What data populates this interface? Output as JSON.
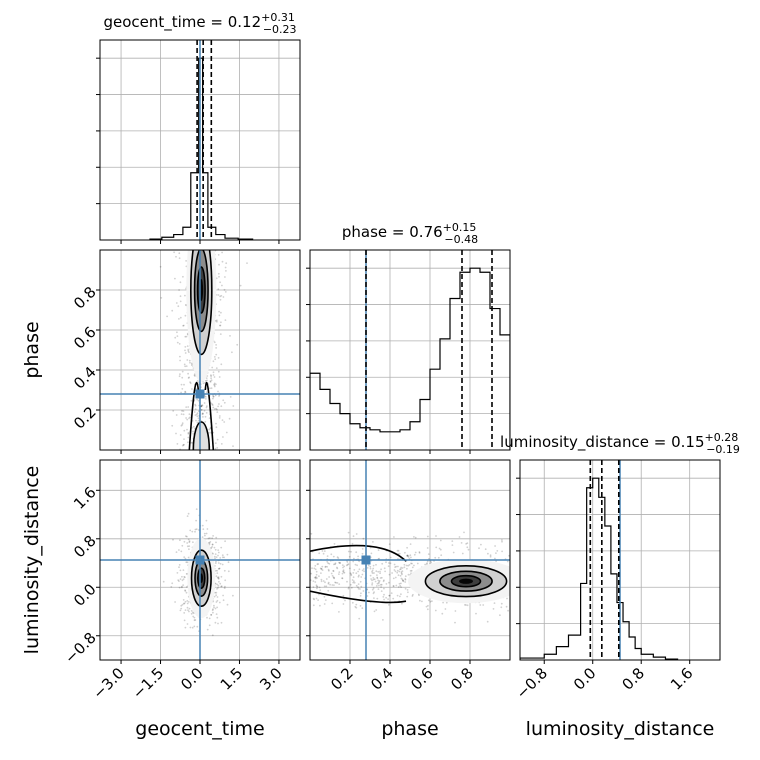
{
  "chart_data": {
    "type": "corner",
    "parameters": [
      "geocent_time",
      "phase",
      "luminosity_distance"
    ],
    "truths": {
      "geocent_time": 0.0,
      "phase": 0.28,
      "luminosity_distance": 0.45
    },
    "truth_color": "#4682b4",
    "titles": [
      {
        "param": "geocent_time",
        "text": "geocent_time = 0.12",
        "plus": "+0.31",
        "minus": "−0.23"
      },
      {
        "param": "phase",
        "text": "phase = 0.76",
        "plus": "+0.15",
        "minus": "−0.48"
      },
      {
        "param": "luminosity_distance",
        "text": "luminosity_distance = 0.15",
        "plus": "+0.28",
        "minus": "−0.19"
      }
    ],
    "axes": {
      "geocent_time": {
        "range": [
          -3.8,
          3.8
        ],
        "ticks": [
          -3.0,
          -1.5,
          0.0,
          1.5,
          3.0
        ],
        "tick_labels": [
          "−3.0",
          "−1.5",
          "0.0",
          "1.5",
          "3.0"
        ]
      },
      "phase": {
        "range": [
          0.0,
          1.0
        ],
        "ticks": [
          0.2,
          0.4,
          0.6,
          0.8
        ],
        "tick_labels": [
          "0.2",
          "0.4",
          "0.6",
          "0.8"
        ]
      },
      "luminosity_distance": {
        "range": [
          -1.2,
          2.1
        ],
        "ticks": [
          -0.8,
          0.0,
          0.8,
          1.6
        ],
        "tick_labels": [
          "−0.8",
          "0.0",
          "0.8",
          "1.6"
        ]
      }
    },
    "histograms": [
      {
        "param": "geocent_time",
        "bin_edges": [
          -1.9,
          -1.45,
          -1.0,
          -0.65,
          -0.35,
          -0.05,
          0.1,
          0.3,
          0.6,
          0.95,
          1.45,
          2.0
        ],
        "counts": [
          0.005,
          0.015,
          0.03,
          0.07,
          0.37,
          1.0,
          0.37,
          0.07,
          0.03,
          0.01,
          0.005
        ],
        "quantile_lines": [
          -0.11,
          0.12,
          0.43
        ]
      },
      {
        "param": "phase",
        "bin_edges": [
          0.0,
          0.05,
          0.1,
          0.15,
          0.2,
          0.25,
          0.3,
          0.35,
          0.4,
          0.45,
          0.5,
          0.55,
          0.6,
          0.65,
          0.7,
          0.75,
          0.8,
          0.85,
          0.9,
          0.95,
          1.0
        ],
        "counts": [
          0.38,
          0.3,
          0.23,
          0.18,
          0.13,
          0.11,
          0.1,
          0.09,
          0.09,
          0.1,
          0.14,
          0.25,
          0.4,
          0.55,
          0.75,
          0.88,
          0.9,
          0.88,
          0.7,
          0.57
        ],
        "quantile_lines": [
          0.28,
          0.76,
          0.91
        ]
      },
      {
        "param": "luminosity_distance",
        "bin_edges": [
          -1.2,
          -0.8,
          -0.6,
          -0.4,
          -0.2,
          -0.1,
          0.0,
          0.1,
          0.2,
          0.3,
          0.4,
          0.5,
          0.6,
          0.7,
          0.8,
          1.0,
          1.2,
          1.4
        ],
        "counts": [
          0.01,
          0.03,
          0.07,
          0.13,
          0.4,
          0.9,
          0.95,
          0.85,
          0.7,
          0.45,
          0.3,
          0.2,
          0.12,
          0.06,
          0.03,
          0.015,
          0.005
        ],
        "quantile_lines": [
          -0.04,
          0.15,
          0.43
        ]
      }
    ],
    "density_2d": [
      {
        "x": "geocent_time",
        "y": "phase",
        "mode_x": 0.05,
        "mode_y": 0.8
      },
      {
        "x": "geocent_time",
        "y": "luminosity_distance",
        "mode_x": 0.05,
        "mode_y": 0.15
      },
      {
        "x": "phase",
        "y": "luminosity_distance",
        "mode_x": 0.78,
        "mode_y": 0.1
      }
    ]
  }
}
